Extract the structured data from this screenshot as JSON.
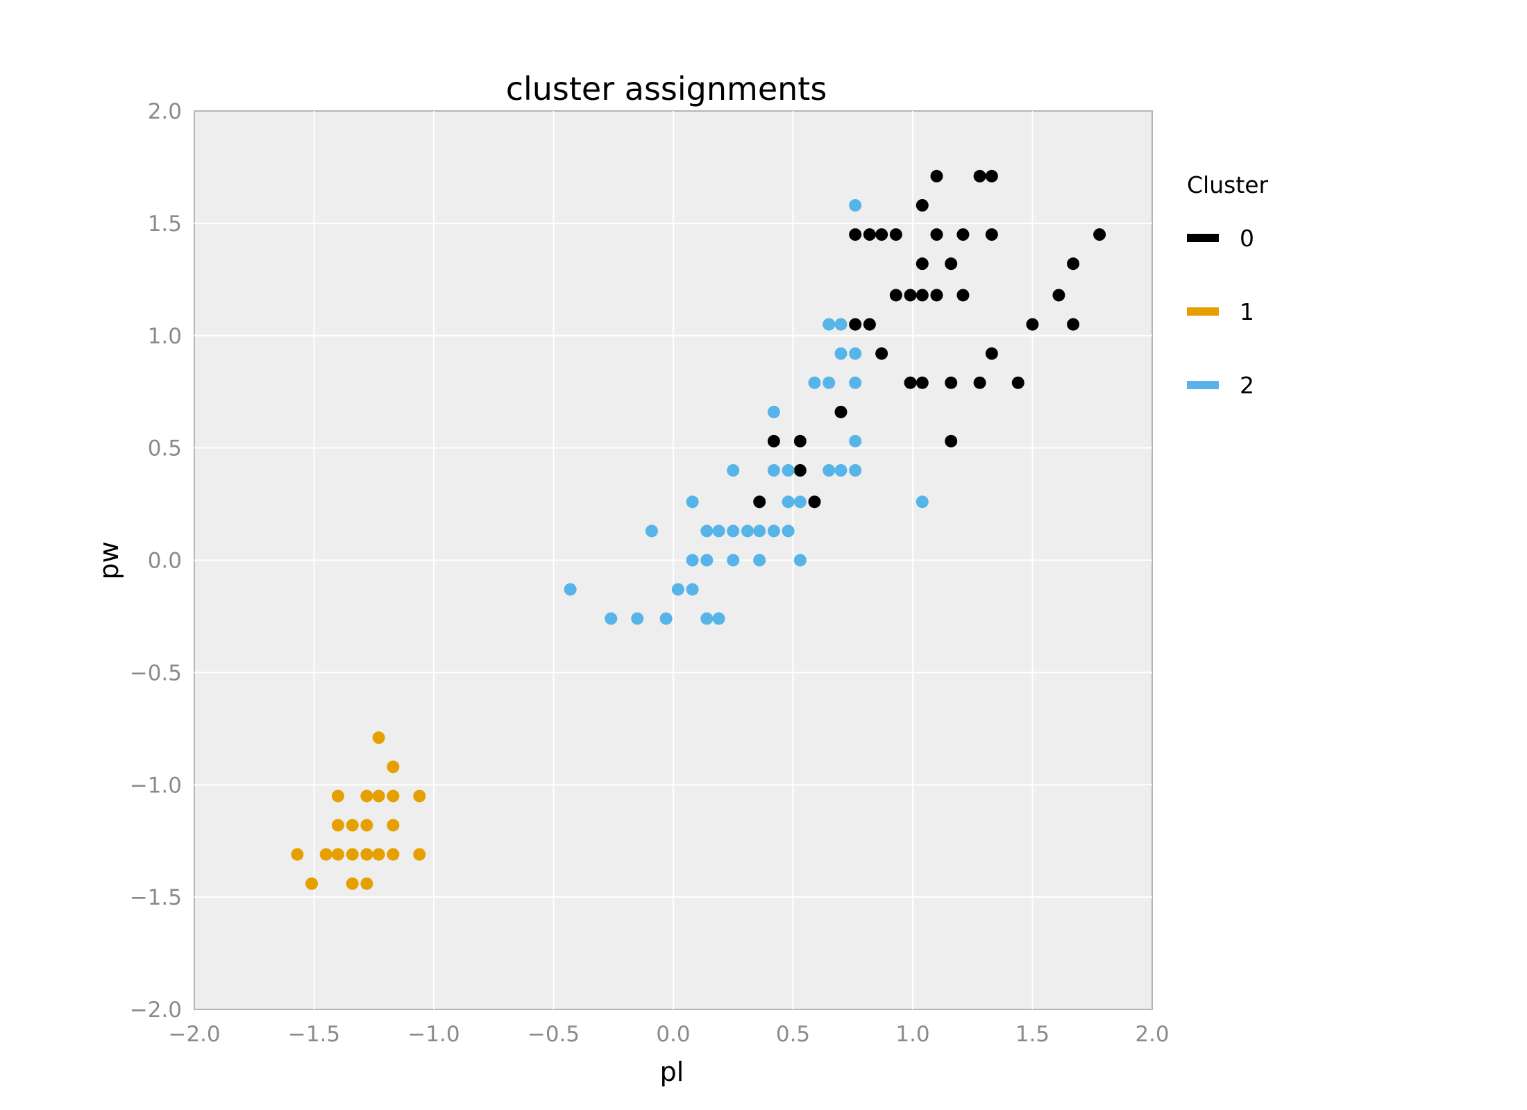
{
  "chart_data": {
    "type": "scatter",
    "title": "cluster assignments",
    "xlabel": "pl",
    "ylabel": "pw",
    "xlim": [
      -2.0,
      2.0
    ],
    "ylim": [
      -2.0,
      2.0
    ],
    "xticks": [
      "−2.0",
      "−1.5",
      "−1.0",
      "−0.5",
      "0.0",
      "0.5",
      "1.0",
      "1.5",
      "2.0"
    ],
    "yticks": [
      "−2.0",
      "−1.5",
      "−1.0",
      "−0.5",
      "0.0",
      "0.5",
      "1.0",
      "1.5",
      "2.0"
    ],
    "grid": true,
    "legend": {
      "title": "Cluster",
      "placement": "right"
    },
    "series": [
      {
        "name": "0",
        "color": "#000000",
        "points": [
          [
            1.1,
            1.71
          ],
          [
            1.28,
            1.71
          ],
          [
            1.33,
            1.71
          ],
          [
            1.04,
            1.58
          ],
          [
            0.76,
            1.45
          ],
          [
            0.82,
            1.45
          ],
          [
            0.87,
            1.45
          ],
          [
            0.93,
            1.45
          ],
          [
            1.1,
            1.45
          ],
          [
            1.21,
            1.45
          ],
          [
            1.33,
            1.45
          ],
          [
            1.78,
            1.45
          ],
          [
            1.04,
            1.32
          ],
          [
            1.16,
            1.32
          ],
          [
            1.67,
            1.32
          ],
          [
            0.93,
            1.18
          ],
          [
            0.99,
            1.18
          ],
          [
            1.04,
            1.18
          ],
          [
            1.1,
            1.18
          ],
          [
            1.21,
            1.18
          ],
          [
            1.61,
            1.18
          ],
          [
            0.76,
            1.05
          ],
          [
            0.82,
            1.05
          ],
          [
            1.5,
            1.05
          ],
          [
            1.67,
            1.05
          ],
          [
            0.87,
            0.92
          ],
          [
            1.33,
            0.92
          ],
          [
            0.99,
            0.79
          ],
          [
            1.04,
            0.79
          ],
          [
            1.16,
            0.79
          ],
          [
            1.28,
            0.79
          ],
          [
            1.44,
            0.79
          ],
          [
            0.7,
            0.66
          ],
          [
            0.42,
            0.53
          ],
          [
            0.53,
            0.53
          ],
          [
            1.16,
            0.53
          ],
          [
            0.53,
            0.4
          ],
          [
            0.36,
            0.26
          ],
          [
            0.59,
            0.26
          ]
        ]
      },
      {
        "name": "1",
        "color": "#e69f00",
        "points": [
          [
            -1.23,
            -0.79
          ],
          [
            -1.17,
            -0.92
          ],
          [
            -1.4,
            -1.05
          ],
          [
            -1.28,
            -1.05
          ],
          [
            -1.23,
            -1.05
          ],
          [
            -1.17,
            -1.05
          ],
          [
            -1.06,
            -1.05
          ],
          [
            -1.4,
            -1.18
          ],
          [
            -1.34,
            -1.18
          ],
          [
            -1.28,
            -1.18
          ],
          [
            -1.17,
            -1.18
          ],
          [
            -1.57,
            -1.31
          ],
          [
            -1.45,
            -1.31
          ],
          [
            -1.4,
            -1.31
          ],
          [
            -1.34,
            -1.31
          ],
          [
            -1.28,
            -1.31
          ],
          [
            -1.23,
            -1.31
          ],
          [
            -1.17,
            -1.31
          ],
          [
            -1.06,
            -1.31
          ],
          [
            -1.51,
            -1.44
          ],
          [
            -1.34,
            -1.44
          ],
          [
            -1.28,
            -1.44
          ]
        ]
      },
      {
        "name": "2",
        "color": "#56b4e9",
        "points": [
          [
            0.76,
            1.58
          ],
          [
            0.65,
            1.05
          ],
          [
            0.7,
            1.05
          ],
          [
            0.7,
            0.92
          ],
          [
            0.76,
            0.92
          ],
          [
            0.59,
            0.79
          ],
          [
            0.65,
            0.79
          ],
          [
            0.76,
            0.79
          ],
          [
            0.42,
            0.66
          ],
          [
            0.76,
            0.53
          ],
          [
            0.25,
            0.4
          ],
          [
            0.42,
            0.4
          ],
          [
            0.48,
            0.4
          ],
          [
            0.65,
            0.4
          ],
          [
            0.7,
            0.4
          ],
          [
            0.76,
            0.4
          ],
          [
            0.08,
            0.26
          ],
          [
            0.48,
            0.26
          ],
          [
            0.53,
            0.26
          ],
          [
            1.04,
            0.26
          ],
          [
            -0.09,
            0.13
          ],
          [
            0.14,
            0.13
          ],
          [
            0.19,
            0.13
          ],
          [
            0.25,
            0.13
          ],
          [
            0.31,
            0.13
          ],
          [
            0.36,
            0.13
          ],
          [
            0.42,
            0.13
          ],
          [
            0.48,
            0.13
          ],
          [
            0.08,
            0.0
          ],
          [
            0.14,
            0.0
          ],
          [
            0.25,
            0.0
          ],
          [
            0.36,
            0.0
          ],
          [
            0.53,
            0.0
          ],
          [
            -0.43,
            -0.13
          ],
          [
            0.02,
            -0.13
          ],
          [
            0.08,
            -0.13
          ],
          [
            -0.26,
            -0.26
          ],
          [
            -0.15,
            -0.26
          ],
          [
            -0.03,
            -0.26
          ],
          [
            0.14,
            -0.26
          ],
          [
            0.19,
            -0.26
          ]
        ]
      }
    ]
  }
}
